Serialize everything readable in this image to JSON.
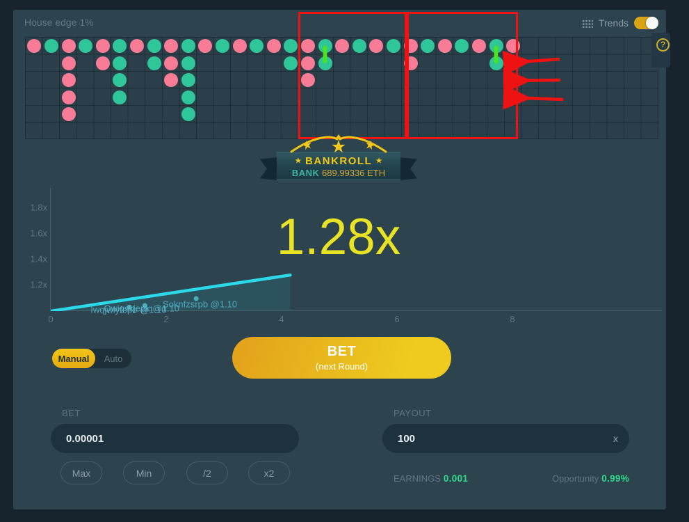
{
  "header": {
    "house_edge": "House edge 1%",
    "trends_label": "Trends",
    "trends_toggle_on": true,
    "help": "?"
  },
  "trends": {
    "pink_color": "#f87c95",
    "teal_color": "#2fc69a",
    "link_color": "#4ae51e",
    "columns": [
      [
        "p"
      ],
      [
        "t"
      ],
      [
        "p",
        "p",
        "p",
        "p",
        "p"
      ],
      [
        "t"
      ],
      [
        "p",
        "p"
      ],
      [
        "t",
        "t",
        "t",
        "t"
      ],
      [
        "p"
      ],
      [
        "t",
        "t"
      ],
      [
        "p",
        "p",
        "p"
      ],
      [
        "t",
        "t",
        "t",
        "t",
        "t"
      ],
      [
        "p"
      ],
      [
        "t"
      ],
      [
        "p"
      ],
      [
        "t"
      ],
      [
        "p"
      ],
      [
        "t",
        "t"
      ],
      [
        "p",
        "p",
        "p"
      ],
      [
        "t",
        "t"
      ],
      [
        "p"
      ],
      [
        "t"
      ],
      [
        "p"
      ],
      [
        "t"
      ],
      [
        "p",
        "p"
      ],
      [
        "t"
      ],
      [
        "p"
      ],
      [
        "t"
      ],
      [
        "p"
      ],
      [
        "t",
        "t"
      ],
      [
        "p"
      ],
      [],
      [],
      [],
      [],
      [],
      [],
      [],
      []
    ],
    "linked_columns": [
      17,
      27
    ]
  },
  "annotations": {
    "red_color": "#ee1212",
    "box_count": 2,
    "arrow_count": 3
  },
  "banner": {
    "star": "★",
    "title": "BANKROLL",
    "bank_label": "BANK",
    "bank_value": "689.99336 ETH"
  },
  "chart_data": {
    "type": "line",
    "current_multiplier": "1.28x",
    "y_tick_labels": [
      "1.8x",
      "1.6x",
      "1.4x",
      "1.2x"
    ],
    "x_tick_labels": [
      "0",
      "2",
      "4",
      "6",
      "8"
    ],
    "x_range": [
      0,
      10.6
    ],
    "y_axis_range": [
      1.0,
      1.96
    ],
    "line_color": "#2bd9e9",
    "series": [
      {
        "name": "multiplier-curve",
        "x": [
          0,
          4.15
        ],
        "y": [
          1.0,
          1.28
        ]
      }
    ],
    "cashout_dots": [
      [
        1.36,
        1.031
      ],
      [
        1.63,
        1.043
      ],
      [
        2.52,
        1.097
      ]
    ],
    "cashouts": [
      {
        "name": "Soknfzsrpb",
        "at": "@1.10",
        "x": 1.94,
        "y": 1.054
      },
      {
        "name": "Qwigskjepk",
        "at": "@1.10",
        "x": 0.92,
        "y": 1.021
      },
      {
        "name": "Iwqjwlyfepb",
        "at": "@1.10",
        "x": 0.69,
        "y": 1.011
      }
    ]
  },
  "controls": {
    "manual": "Manual",
    "auto": "Auto",
    "bet_button": "BET",
    "bet_button_sub": "(next Round)"
  },
  "form": {
    "bet_label": "BET",
    "bet_value": "0.00001",
    "quick_buttons": [
      "Max",
      "Min",
      "/2",
      "x2"
    ],
    "payout_label": "PAYOUT",
    "payout_value": "100",
    "payout_suffix": "x",
    "earnings_label": "EARNINGS",
    "earnings_value": "0.001",
    "opportunity_label": "Opportunity",
    "opportunity_value": "0.99%"
  }
}
